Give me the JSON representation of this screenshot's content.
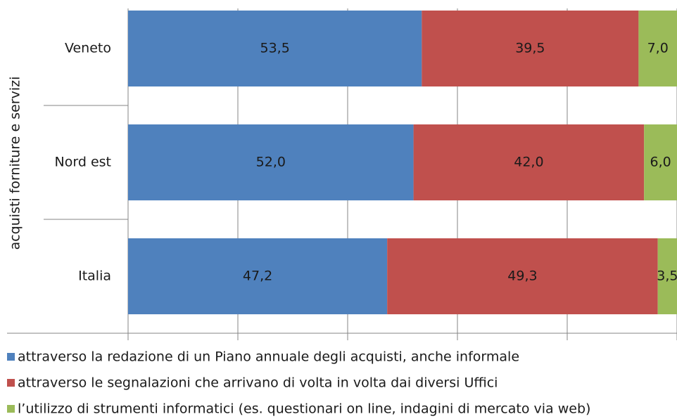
{
  "chart_data": {
    "type": "bar",
    "orientation": "horizontal",
    "stacked": true,
    "y_label": "acquisti forniture e servizi",
    "categories": [
      "Veneto",
      "Nord est",
      "Italia"
    ],
    "series": [
      {
        "name": "attraverso la redazione di un Piano annuale degli acquisti, anche informale",
        "color": "#4f81bd",
        "values": [
          53.5,
          52.0,
          47.2
        ],
        "value_labels": [
          "53,5",
          "52,0",
          "47,2"
        ]
      },
      {
        "name": "attraverso le segnalazioni che arrivano di volta in volta dai diversi Uffici",
        "color": "#c0504d",
        "values": [
          39.5,
          42.0,
          49.3
        ],
        "value_labels": [
          "39,5",
          "42,0",
          "49,3"
        ]
      },
      {
        "name": "l’utilizzo di strumenti informatici (es. questionari on line, indagini di mercato via web)",
        "color": "#9bbb59",
        "values": [
          7.0,
          6.0,
          3.5
        ],
        "value_labels": [
          "7,0",
          "6,0",
          "3,5"
        ]
      }
    ],
    "xlim": [
      0,
      100
    ],
    "xticks": [
      0,
      20,
      40,
      60,
      80,
      100
    ],
    "grid": true,
    "legend": "bottom"
  }
}
